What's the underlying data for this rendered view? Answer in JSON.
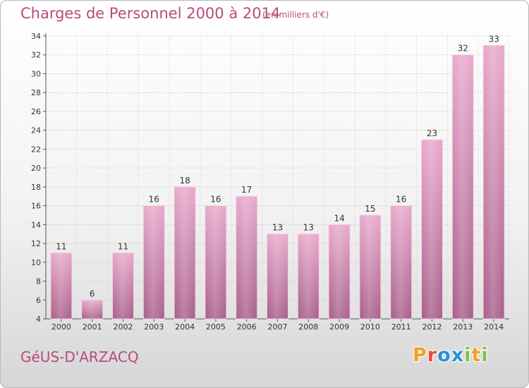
{
  "title": "Charges de Personnel 2000 à 2014",
  "subtitle": "(en milliers d'€)",
  "commune": "GéUS-D'ARZACQ",
  "logo": {
    "text": "Proxiti",
    "letters": [
      "P",
      "r",
      "o",
      "x",
      "i",
      "t",
      "i"
    ],
    "colors": [
      "#f0a020",
      "#e84b3c",
      "#2a8fd4",
      "#2a8fd4",
      "#7cc242",
      "#f0a020",
      "#7cc242"
    ]
  },
  "colors": {
    "title": "#b94a7f",
    "bar_light": "#e8a8cc",
    "bar_dark": "#a9628d",
    "grid": "#cfcfcf"
  },
  "chart_data": {
    "type": "bar",
    "title": "Charges de Personnel 2000 à 2014",
    "subtitle": "(en milliers d'€)",
    "xlabel": "",
    "ylabel": "",
    "categories": [
      "2000",
      "2001",
      "2002",
      "2003",
      "2004",
      "2005",
      "2006",
      "2007",
      "2008",
      "2009",
      "2010",
      "2011",
      "2012",
      "2013",
      "2014"
    ],
    "values": [
      11,
      6,
      11,
      16,
      18,
      16,
      17,
      13,
      13,
      14,
      15,
      16,
      23,
      32,
      33
    ],
    "ylim": [
      4,
      34
    ],
    "yticks": [
      4,
      6,
      8,
      10,
      12,
      14,
      16,
      18,
      20,
      22,
      24,
      26,
      28,
      30,
      32,
      34
    ],
    "grid": true,
    "legend": "none"
  }
}
